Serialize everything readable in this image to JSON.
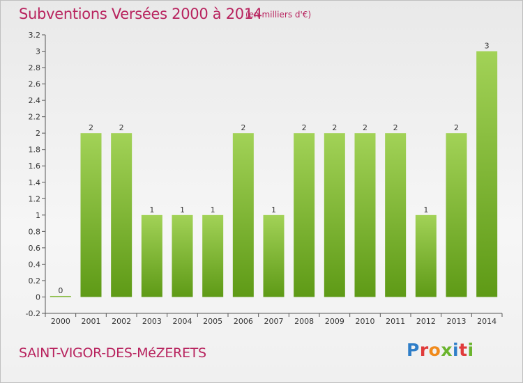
{
  "title": "Subventions Versées 2000 à 2014",
  "subtitle": "(en milliers d'€)",
  "commune": "SAINT-VIGOR-DES-MéZERETS",
  "logo": {
    "letters": [
      "P",
      "r",
      "o",
      "x",
      "i",
      "t",
      "i"
    ],
    "colors": [
      "#2f7ec8",
      "#e03b3b",
      "#f08a1c",
      "#6ab42d",
      "#2f7ec8",
      "#e03b3b",
      "#6ab42d"
    ]
  },
  "colors": {
    "bar_top": "#a2d257",
    "bar_bottom": "#5e9a16",
    "title": "#b8235e"
  },
  "chart_data": {
    "type": "bar",
    "categories": [
      "2000",
      "2001",
      "2002",
      "2003",
      "2004",
      "2005",
      "2006",
      "2007",
      "2008",
      "2009",
      "2010",
      "2011",
      "2012",
      "2013",
      "2014"
    ],
    "values": [
      0,
      2,
      2,
      1,
      1,
      1,
      2,
      1,
      2,
      2,
      2,
      2,
      1,
      2,
      3
    ],
    "data_labels": [
      "0",
      "2",
      "2",
      "1",
      "1",
      "1",
      "2",
      "1",
      "2",
      "2",
      "2",
      "2",
      "1",
      "2",
      "3"
    ],
    "y_ticks": [
      "3.2",
      "3",
      "2.8",
      "2.6",
      "2.4",
      "2.2",
      "2",
      "1.8",
      "1.6",
      "1.4",
      "1.2",
      "1",
      "0.8",
      "0.6",
      "0.4",
      "0.2",
      "0",
      "-0.2"
    ],
    "ylim": [
      -0.2,
      3.2
    ],
    "grid": false,
    "title": "Subventions Versées 2000 à 2014",
    "xlabel": "",
    "ylabel": ""
  }
}
